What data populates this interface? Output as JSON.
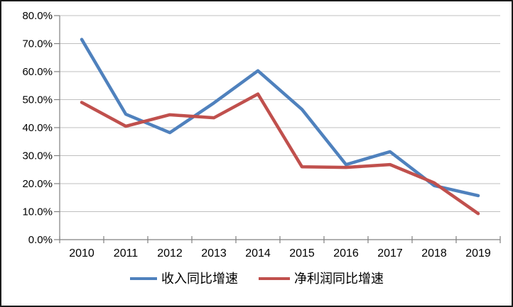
{
  "chart_data": {
    "type": "line",
    "title": "",
    "xlabel": "",
    "ylabel": "",
    "categories": [
      "2010",
      "2011",
      "2012",
      "2013",
      "2014",
      "2015",
      "2016",
      "2017",
      "2018",
      "2019"
    ],
    "series": [
      {
        "name": "收入同比增速",
        "color": "#4F81BD",
        "values": [
          71.5,
          44.8,
          38.2,
          48.8,
          60.3,
          46.5,
          26.8,
          31.4,
          19.3,
          15.7
        ]
      },
      {
        "name": "净利润同比增速",
        "color": "#C0504D",
        "values": [
          49.0,
          40.5,
          44.6,
          43.5,
          52.0,
          26.0,
          25.8,
          26.8,
          20.3,
          9.3
        ]
      }
    ],
    "ylim": [
      0,
      80
    ],
    "y_tick_step": 10,
    "y_tick_labels": [
      "0.0%",
      "10.0%",
      "20.0%",
      "30.0%",
      "40.0%",
      "50.0%",
      "60.0%",
      "70.0%",
      "80.0%"
    ],
    "grid": true,
    "legend_position": "bottom",
    "colors": {
      "gridline": "#BFBFBF",
      "axis": "#808080",
      "tick": "#808080",
      "text": "#000000",
      "background": "#FFFFFF",
      "border": "#1C1C1C"
    }
  }
}
